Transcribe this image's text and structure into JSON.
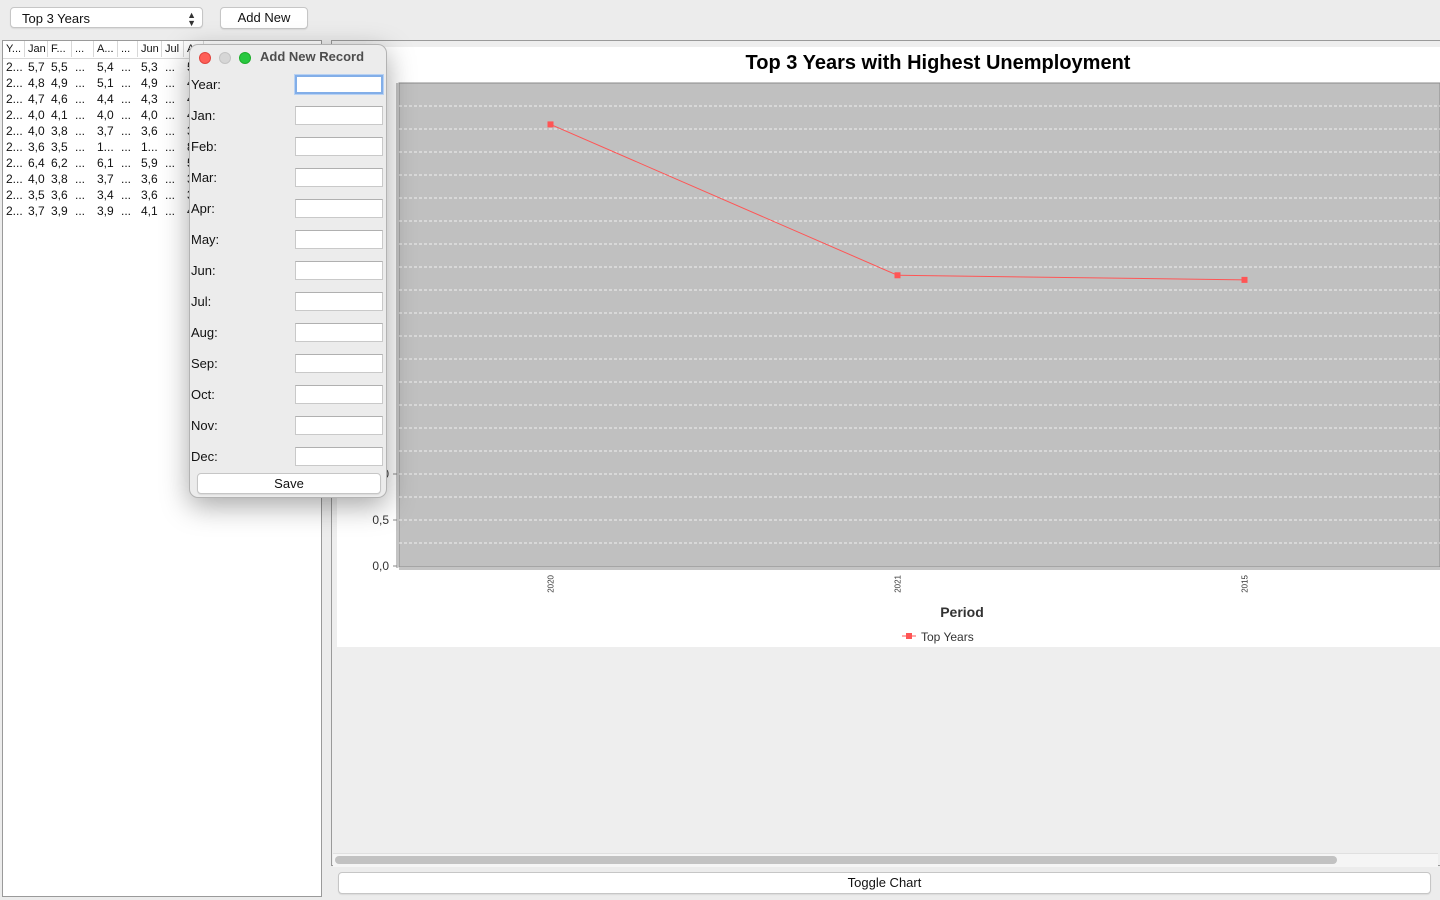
{
  "toolbar": {
    "dataset_select": "Top 3 Years",
    "add_new_label": "Add New"
  },
  "table": {
    "headers": [
      "Y...",
      "Jan",
      "F...",
      "...",
      "A...",
      "...",
      "Jun",
      "Jul",
      "A"
    ],
    "rows": [
      [
        "2...",
        "5,7",
        "5,5",
        "...",
        "5,4",
        "...",
        "5,3",
        "...",
        "5"
      ],
      [
        "2...",
        "4,8",
        "4,9",
        "...",
        "5,1",
        "...",
        "4,9",
        "...",
        "4"
      ],
      [
        "2...",
        "4,7",
        "4,6",
        "...",
        "4,4",
        "...",
        "4,3",
        "...",
        "4"
      ],
      [
        "2...",
        "4,0",
        "4,1",
        "...",
        "4,0",
        "...",
        "4,0",
        "...",
        "4"
      ],
      [
        "2...",
        "4,0",
        "3,8",
        "...",
        "3,7",
        "...",
        "3,6",
        "...",
        "3"
      ],
      [
        "2...",
        "3,6",
        "3,5",
        "...",
        "1...",
        "...",
        "1...",
        "...",
        "8"
      ],
      [
        "2...",
        "6,4",
        "6,2",
        "...",
        "6,1",
        "...",
        "5,9",
        "...",
        "5"
      ],
      [
        "2...",
        "4,0",
        "3,8",
        "...",
        "3,7",
        "...",
        "3,6",
        "...",
        "3"
      ],
      [
        "2...",
        "3,5",
        "3,6",
        "...",
        "3,4",
        "...",
        "3,6",
        "...",
        "3"
      ],
      [
        "2...",
        "3,7",
        "3,9",
        "...",
        "3,9",
        "...",
        "4,1",
        "...",
        "4"
      ]
    ]
  },
  "chart_data": {
    "type": "line",
    "title": "Top 3 Years with Highest Unemployment",
    "xlabel": "Period",
    "ylabel": "",
    "categories": [
      "2020",
      "2021",
      "2015"
    ],
    "series": [
      {
        "name": "Top Years",
        "values": [
          4.8,
          3.16,
          3.11
        ],
        "color": "#ff5555"
      }
    ],
    "y_tick_labels": [
      "0,0",
      "0,5",
      "1,0"
    ],
    "ylim": [
      0,
      5.0
    ],
    "grid": true,
    "legend": "bottom",
    "plot_background": "#c0c0c0"
  },
  "dialog": {
    "title": "Add New Record",
    "fields": [
      {
        "label": "Year:",
        "value": ""
      },
      {
        "label": "Jan:",
        "value": ""
      },
      {
        "label": "Feb:",
        "value": ""
      },
      {
        "label": "Mar:",
        "value": ""
      },
      {
        "label": "Apr:",
        "value": ""
      },
      {
        "label": "May:",
        "value": ""
      },
      {
        "label": "Jun:",
        "value": ""
      },
      {
        "label": "Jul:",
        "value": ""
      },
      {
        "label": "Aug:",
        "value": ""
      },
      {
        "label": "Sep:",
        "value": ""
      },
      {
        "label": "Oct:",
        "value": ""
      },
      {
        "label": "Nov:",
        "value": ""
      },
      {
        "label": "Dec:",
        "value": ""
      }
    ],
    "save_label": "Save"
  },
  "bottom": {
    "toggle_chart_label": "Toggle Chart"
  },
  "icons": {
    "select_arrows": "chevron-up-down-icon",
    "close": "close-icon",
    "minimize": "minimize-icon",
    "zoom": "zoom-icon"
  }
}
